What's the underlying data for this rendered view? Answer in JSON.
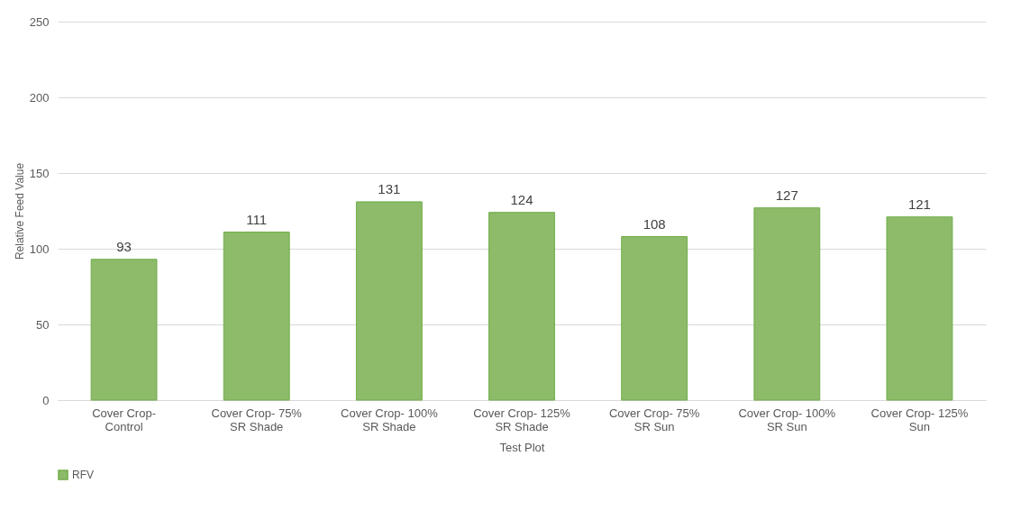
{
  "chart_data": {
    "type": "bar",
    "xlabel": "Test Plot",
    "ylabel": "Relative Feed Value",
    "categories": [
      "Cover Crop- Control",
      "Cover Crop- 75% SR Shade",
      "Cover Crop- 100% SR Shade",
      "Cover Crop- 125% SR Shade",
      "Cover Crop- 75% SR Sun",
      "Cover Crop- 100% SR Sun",
      "Cover Crop- 125% Sun"
    ],
    "series": [
      {
        "name": "RFV",
        "color": "#8dbb6a",
        "values": [
          93,
          111,
          131,
          124,
          108,
          127,
          121
        ]
      }
    ],
    "ylim": [
      0,
      250
    ],
    "yticks": [
      0,
      50,
      100,
      150,
      200,
      250
    ],
    "grid": "y",
    "legend": "bottom",
    "data_labels": true
  }
}
